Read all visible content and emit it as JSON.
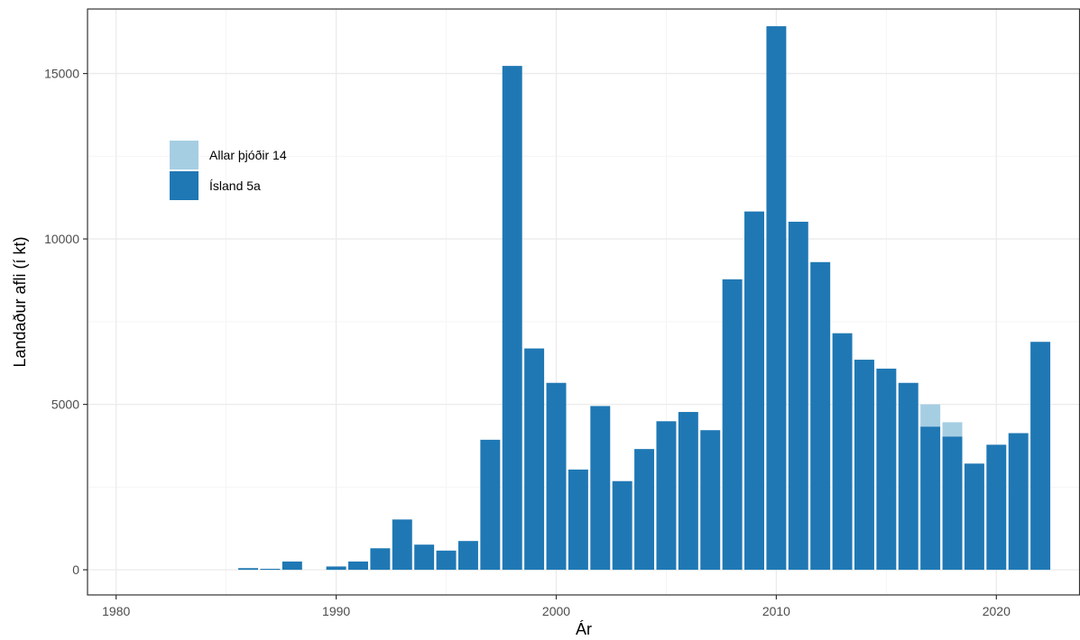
{
  "chart_data": {
    "type": "bar",
    "stacked": true,
    "xlabel": "Ár",
    "ylabel": "Landaður afli (í kt)",
    "xlim": [
      1978.7,
      2023.8
    ],
    "ylim": [
      -760,
      16950
    ],
    "x_ticks": [
      1980,
      1990,
      2000,
      2010,
      2020
    ],
    "y_ticks": [
      0,
      5000,
      10000,
      15000
    ],
    "grid": true,
    "legend_position": "top-left",
    "x": [
      1986,
      1987,
      1988,
      1990,
      1991,
      1992,
      1993,
      1994,
      1995,
      1996,
      1997,
      1998,
      1999,
      2000,
      2001,
      2002,
      2003,
      2004,
      2005,
      2006,
      2007,
      2008,
      2009,
      2010,
      2011,
      2012,
      2013,
      2014,
      2015,
      2016,
      2017,
      2018,
      2019,
      2020,
      2021,
      2022
    ],
    "series": [
      {
        "name": "Ísland 5a",
        "color": "#1f78b4",
        "values": [
          50,
          30,
          250,
          100,
          250,
          650,
          1520,
          760,
          580,
          870,
          3930,
          15230,
          6690,
          5650,
          3030,
          4950,
          2680,
          3650,
          4490,
          4770,
          4220,
          8780,
          10830,
          16430,
          10520,
          9300,
          7150,
          6350,
          6080,
          5650,
          4330,
          4030,
          3210,
          3780,
          4130,
          6890
        ]
      },
      {
        "name": "Allar þjóðir 14",
        "color": "#a6cee3",
        "values": [
          0,
          0,
          0,
          0,
          0,
          0,
          0,
          0,
          0,
          0,
          0,
          0,
          0,
          0,
          0,
          0,
          0,
          0,
          0,
          0,
          0,
          0,
          0,
          0,
          0,
          0,
          0,
          0,
          0,
          0,
          670,
          430,
          0,
          0,
          0,
          0
        ]
      }
    ],
    "legend": [
      {
        "label": "Allar þjóðir 14",
        "color": "#a6cee3"
      },
      {
        "label": "Ísland 5a",
        "color": "#1f78b4"
      }
    ],
    "colors": {
      "panel_border": "#333333",
      "grid_major": "#ebebeb",
      "grid_minor": "#f5f5f5",
      "tick_label": "#4d4d4d"
    }
  }
}
